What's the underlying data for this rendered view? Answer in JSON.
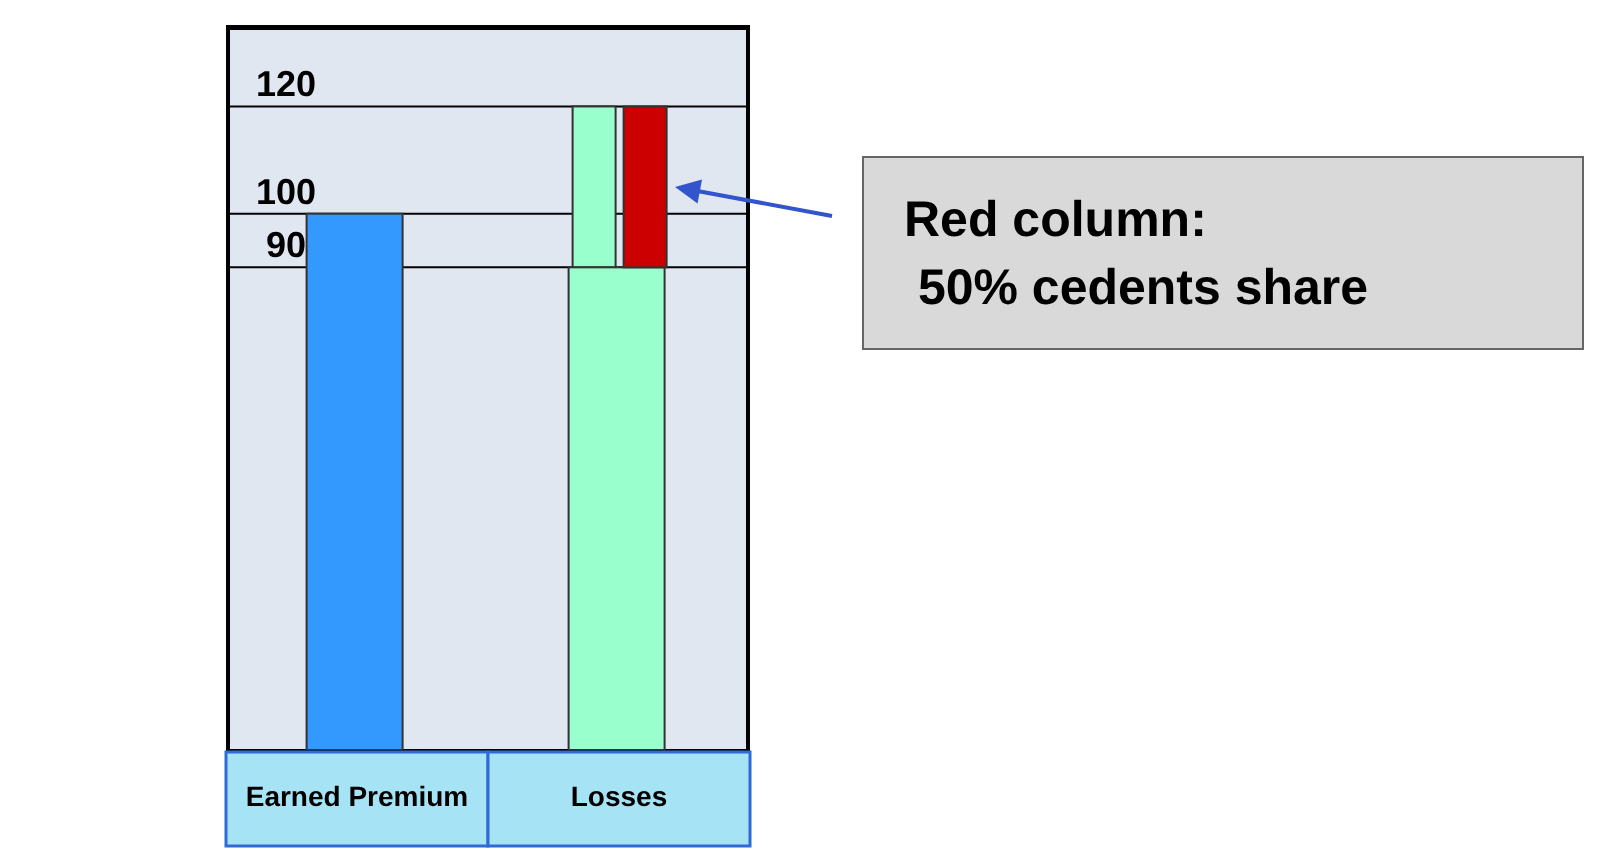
{
  "chart_data": {
    "type": "bar",
    "categories": [
      "Earned Premium",
      "Losses"
    ],
    "series": [
      {
        "values": [
          null,
          30
        ],
        "base": [
          null,
          90
        ],
        "color": "#99ffcc"
      },
      {
        "values": [
          100,
          90
        ],
        "colors": [
          "#3399ff",
          "#99ffcc"
        ]
      },
      {
        "values": [
          null,
          30
        ],
        "base": [
          null,
          90
        ],
        "color": "#cc0000"
      }
    ],
    "ylim": [
      0,
      135
    ],
    "yticks": [
      90,
      100,
      120
    ],
    "grid": "y",
    "annotations": [
      "Red column:\n 50% cedents share"
    ]
  }
}
